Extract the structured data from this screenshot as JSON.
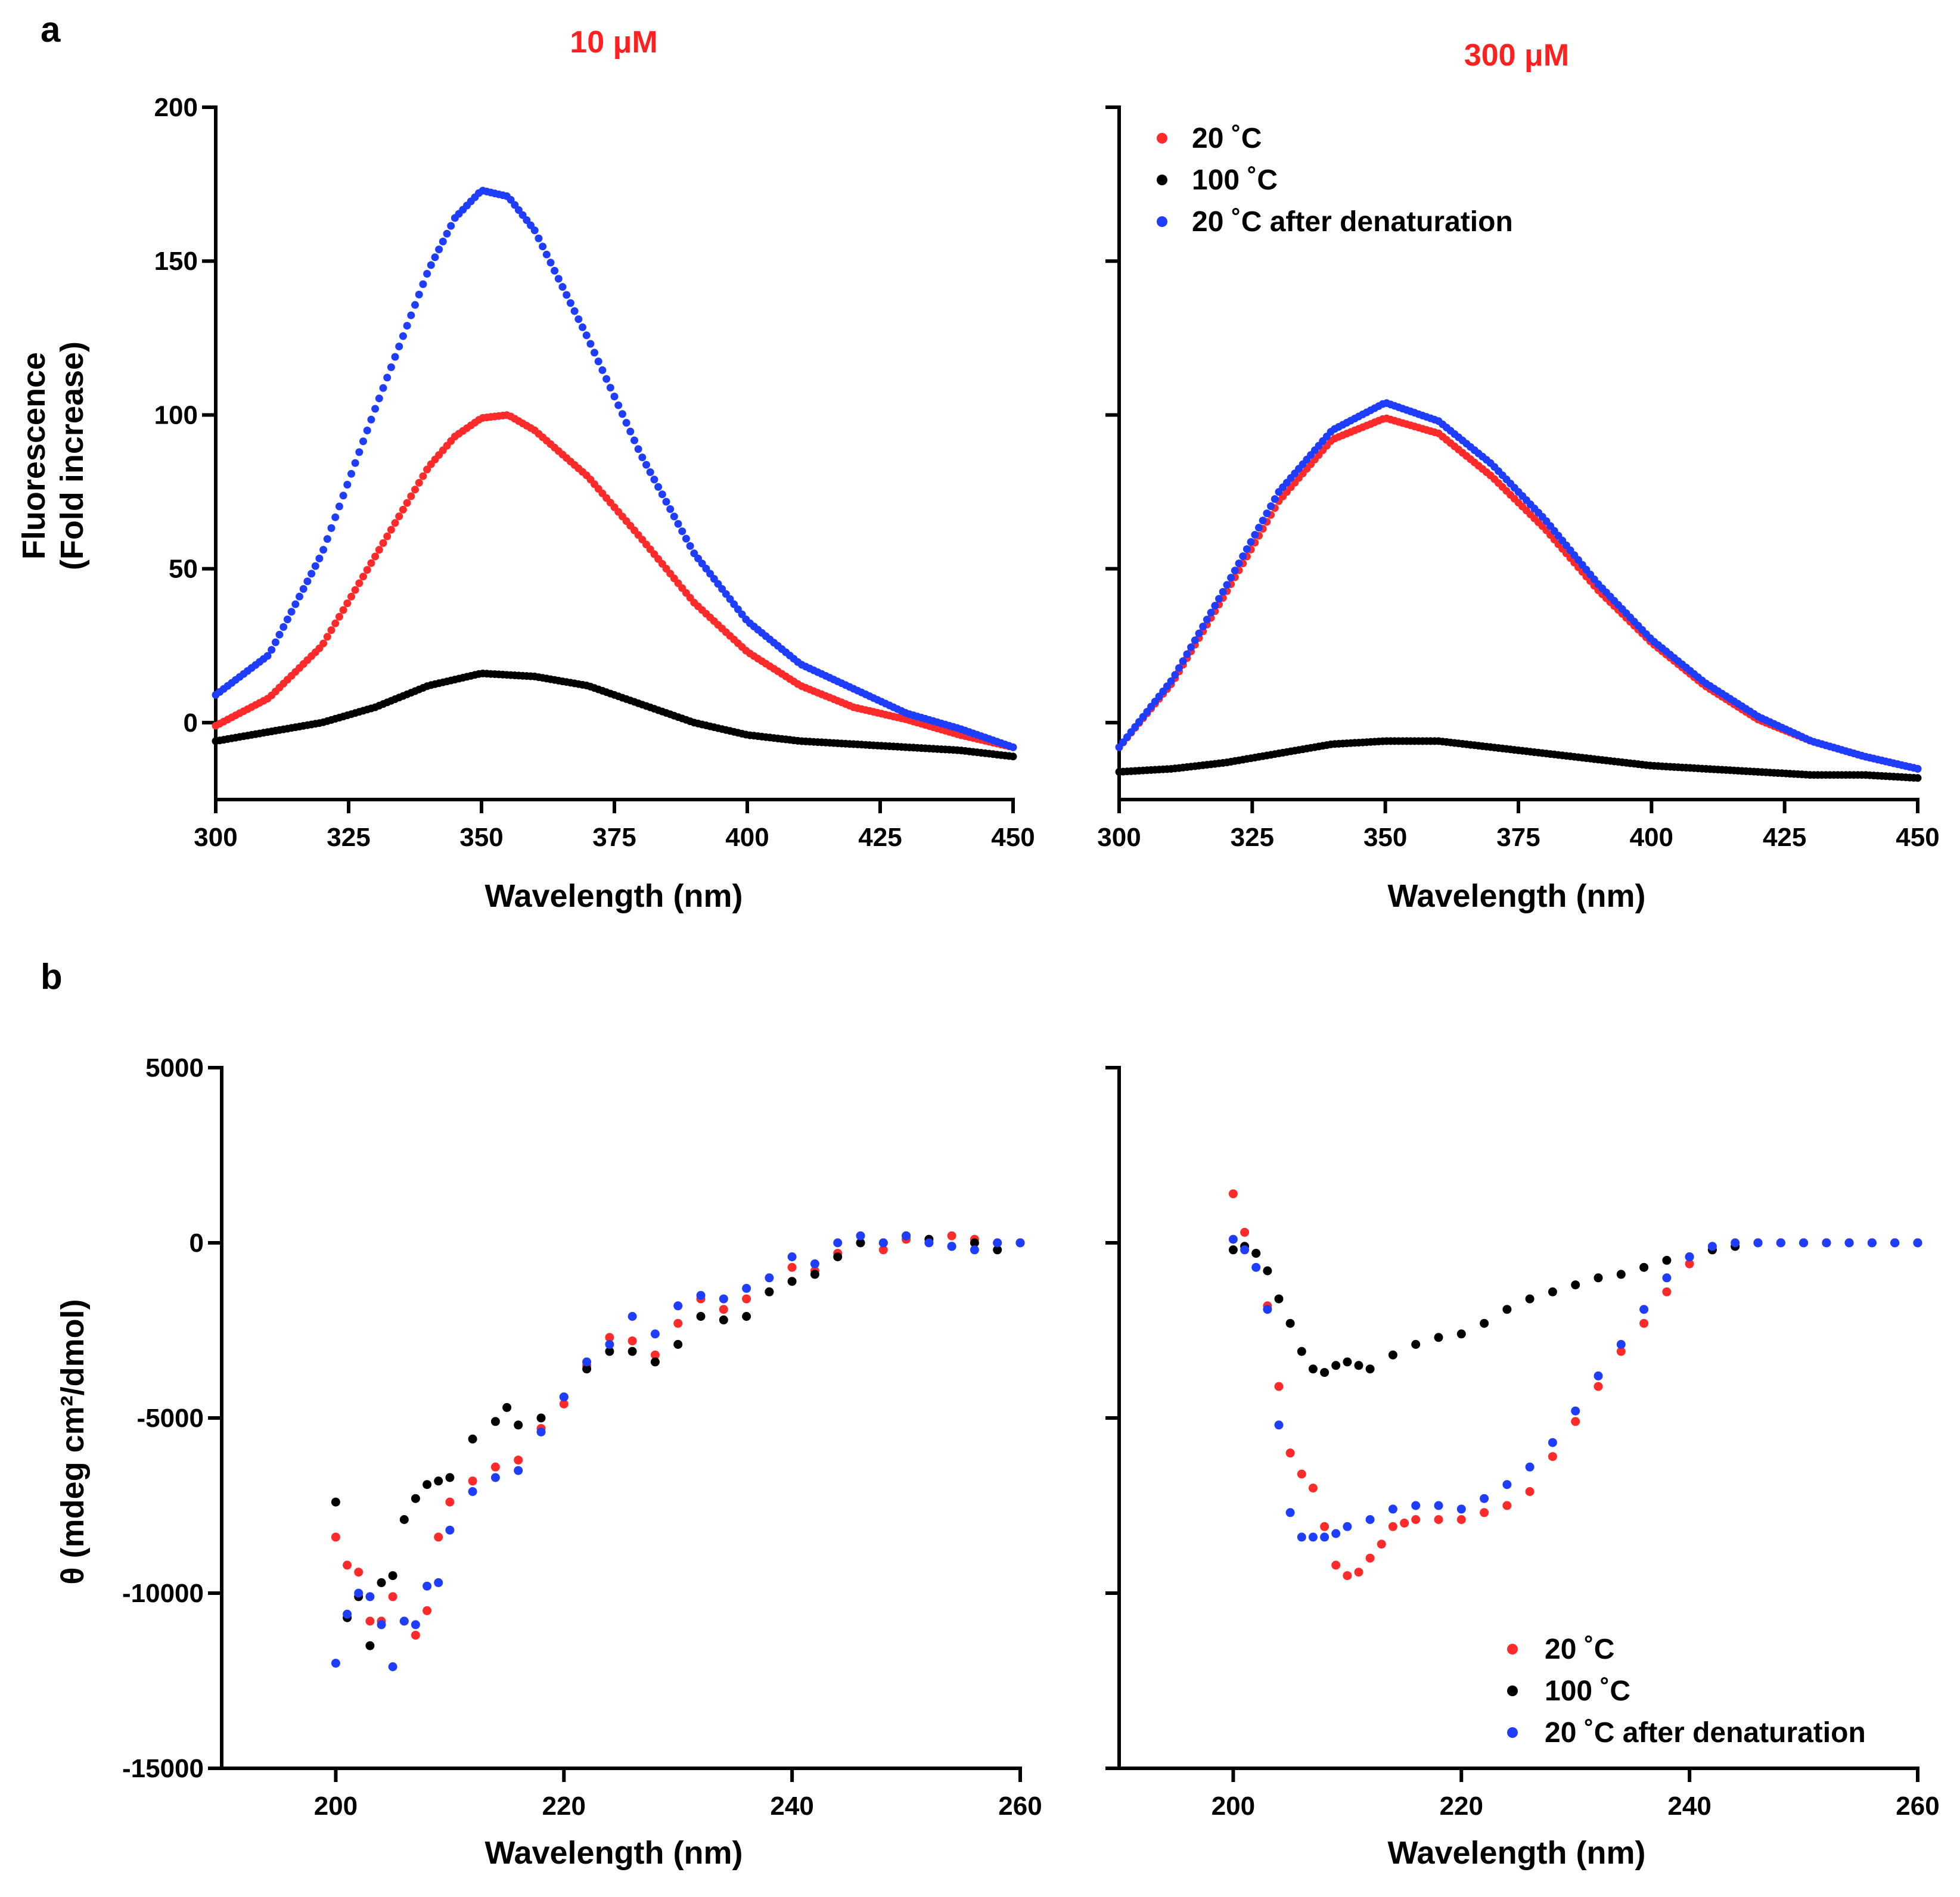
{
  "panel_letters": {
    "a": "a",
    "b": "b"
  },
  "concentrations": {
    "left": "10 μM",
    "right": "300 μM"
  },
  "colors": {
    "series_20C": "#ff2a2a",
    "series_100C": "#000000",
    "series_after": "#1f3dff",
    "title": "#ff2020"
  },
  "legend": {
    "items": [
      {
        "label": "20 ˚C",
        "color": "#ff2a2a"
      },
      {
        "label": "100 ˚C",
        "color": "#000000"
      },
      {
        "label": "20 ˚C after denaturation",
        "color": "#1f3dff"
      }
    ]
  },
  "axes": {
    "fluor_ylabel_line1": "Fluorescence",
    "fluor_ylabel_line2": "(Fold increase)",
    "cd_ylabel": "θ (mdeg cm²/dmol)",
    "xlabel": "Wavelength (nm)"
  },
  "chart_data": [
    {
      "type": "scatter",
      "id": "fluor_10uM",
      "title": "10 μM",
      "xlabel": "Wavelength (nm)",
      "ylabel": "Fluorescence (Fold increase)",
      "xlim": [
        300,
        450
      ],
      "ylim": [
        -25,
        200
      ],
      "xticks": [
        300,
        325,
        350,
        375,
        400,
        425,
        450
      ],
      "yticks": [
        0,
        50,
        100,
        150,
        200
      ],
      "series": [
        {
          "name": "20 ˚C",
          "x": [
            300,
            310,
            320,
            330,
            340,
            345,
            350,
            355,
            360,
            370,
            380,
            390,
            400,
            410,
            420,
            430,
            440,
            450
          ],
          "y": [
            -1,
            8,
            25,
            54,
            83,
            93,
            99,
            100,
            95,
            80,
            60,
            39,
            23,
            12,
            5,
            1,
            -4,
            -8
          ]
        },
        {
          "name": "100 ˚C",
          "x": [
            300,
            310,
            320,
            330,
            340,
            350,
            360,
            370,
            380,
            390,
            400,
            410,
            420,
            430,
            440,
            450
          ],
          "y": [
            -6,
            -3,
            0,
            5,
            12,
            16,
            15,
            12,
            6,
            0,
            -4,
            -6,
            -7,
            -8,
            -9,
            -11
          ]
        },
        {
          "name": "20 ˚C after denaturation",
          "x": [
            300,
            310,
            320,
            330,
            340,
            345,
            350,
            355,
            360,
            370,
            380,
            390,
            400,
            410,
            420,
            430,
            440,
            450
          ],
          "y": [
            9,
            22,
            55,
            102,
            147,
            164,
            173,
            171,
            160,
            125,
            87,
            55,
            33,
            19,
            11,
            3,
            -2,
            -8
          ]
        }
      ]
    },
    {
      "type": "scatter",
      "id": "fluor_300uM",
      "title": "300 μM",
      "xlabel": "Wavelength (nm)",
      "ylabel": "",
      "xlim": [
        300,
        450
      ],
      "ylim": [
        -25,
        200
      ],
      "xticks": [
        300,
        325,
        350,
        375,
        400,
        425,
        450
      ],
      "yticks": [
        0,
        50,
        100,
        150,
        200
      ],
      "legend_position": "top-left",
      "series": [
        {
          "name": "20 ˚C",
          "x": [
            300,
            310,
            320,
            330,
            340,
            350,
            360,
            370,
            380,
            390,
            400,
            410,
            420,
            430,
            440,
            450
          ],
          "y": [
            -8,
            13,
            42,
            72,
            92,
            99,
            94,
            80,
            63,
            43,
            26,
            12,
            1,
            -6,
            -11,
            -15
          ]
        },
        {
          "name": "100 ˚C",
          "x": [
            300,
            310,
            320,
            330,
            340,
            350,
            360,
            370,
            380,
            390,
            400,
            410,
            420,
            430,
            440,
            450
          ],
          "y": [
            -16,
            -15,
            -13,
            -10,
            -7,
            -6,
            -6,
            -8,
            -10,
            -12,
            -14,
            -15,
            -16,
            -17,
            -17,
            -18
          ]
        },
        {
          "name": "20 ˚C after denaturation",
          "x": [
            300,
            310,
            320,
            330,
            340,
            350,
            360,
            370,
            380,
            390,
            400,
            410,
            420,
            430,
            440,
            450
          ],
          "y": [
            -8,
            14,
            44,
            75,
            95,
            104,
            98,
            84,
            66,
            45,
            27,
            13,
            2,
            -6,
            -11,
            -15
          ]
        }
      ]
    },
    {
      "type": "scatter",
      "id": "cd_10uM",
      "xlabel": "Wavelength (nm)",
      "ylabel": "θ (mdeg cm²/dmol)",
      "xlim": [
        190,
        260
      ],
      "ylim": [
        -15000,
        5000
      ],
      "xticks": [
        200,
        220,
        240,
        260
      ],
      "yticks": [
        -15000,
        -10000,
        -5000,
        0,
        5000
      ],
      "series": [
        {
          "name": "20 ˚C",
          "x": [
            200,
            201,
            202,
            203,
            204,
            205,
            206,
            207,
            208,
            209,
            210,
            212,
            214,
            216,
            218,
            220,
            222,
            224,
            226,
            228,
            230,
            232,
            234,
            236,
            238,
            240,
            242,
            244,
            246,
            248,
            250,
            252,
            254,
            256,
            258,
            260
          ],
          "y": [
            -8400,
            -9200,
            -9400,
            -10800,
            -10800,
            -10100,
            -10800,
            -11200,
            -10500,
            -8400,
            -7400,
            -6800,
            -6400,
            -6200,
            -5300,
            -4600,
            -3500,
            -2700,
            -2800,
            -3200,
            -2300,
            -1600,
            -1900,
            -1600,
            -1400,
            -700,
            -800,
            -300,
            0,
            -200,
            100,
            0,
            200,
            100,
            0,
            0
          ]
        },
        {
          "name": "100 ˚C",
          "x": [
            200,
            201,
            202,
            203,
            204,
            205,
            206,
            207,
            208,
            209,
            210,
            212,
            214,
            215,
            216,
            218,
            220,
            222,
            224,
            226,
            228,
            230,
            232,
            234,
            236,
            238,
            240,
            242,
            244,
            246,
            248,
            250,
            252,
            254,
            256,
            258,
            260
          ],
          "y": [
            -7400,
            -10700,
            -10100,
            -11500,
            -9700,
            -9500,
            -7900,
            -7300,
            -6900,
            -6800,
            -6700,
            -5600,
            -5100,
            -4700,
            -5200,
            -5000,
            -4400,
            -3600,
            -3100,
            -3100,
            -3400,
            -2900,
            -2100,
            -2200,
            -2100,
            -1400,
            -1100,
            -900,
            -400,
            0,
            0,
            200,
            100,
            -100,
            0,
            -200,
            0
          ]
        },
        {
          "name": "20 ˚C after denaturation",
          "x": [
            200,
            201,
            202,
            203,
            204,
            205,
            206,
            207,
            208,
            209,
            210,
            212,
            214,
            216,
            218,
            220,
            222,
            224,
            226,
            228,
            230,
            232,
            234,
            236,
            238,
            240,
            242,
            244,
            246,
            248,
            250,
            252,
            254,
            256,
            258,
            260
          ],
          "y": [
            -12000,
            -10600,
            -10000,
            -10100,
            -10900,
            -12100,
            -10800,
            -10900,
            -9800,
            -9700,
            -8200,
            -7100,
            -6700,
            -6500,
            -5400,
            -4400,
            -3400,
            -2900,
            -2100,
            -2600,
            -1800,
            -1500,
            -1600,
            -1300,
            -1000,
            -400,
            -600,
            0,
            200,
            0,
            200,
            0,
            -100,
            -200,
            0,
            0
          ]
        }
      ]
    },
    {
      "type": "scatter",
      "id": "cd_300uM",
      "xlabel": "Wavelength (nm)",
      "ylabel": "",
      "xlim": [
        190,
        260
      ],
      "ylim": [
        -15000,
        5000
      ],
      "xticks": [
        200,
        220,
        240,
        260
      ],
      "yticks": [
        -15000,
        -10000,
        -5000,
        0,
        5000
      ],
      "legend_position": "bottom-right",
      "series": [
        {
          "name": "20 ˚C",
          "x": [
            200,
            201,
            202,
            203,
            204,
            205,
            206,
            207,
            208,
            209,
            210,
            211,
            212,
            213,
            214,
            215,
            216,
            218,
            220,
            222,
            224,
            226,
            228,
            230,
            232,
            234,
            236,
            238,
            240,
            242,
            244,
            246,
            248,
            250,
            252,
            254,
            256,
            258,
            260
          ],
          "y": [
            1400,
            300,
            -300,
            -1800,
            -4100,
            -6000,
            -6600,
            -7000,
            -8100,
            -9200,
            -9500,
            -9400,
            -9000,
            -8600,
            -8100,
            -8000,
            -7900,
            -7900,
            -7900,
            -7700,
            -7500,
            -7100,
            -6100,
            -5100,
            -4100,
            -3100,
            -2300,
            -1400,
            -600,
            -200,
            -100,
            0,
            0,
            0,
            0,
            0,
            0,
            0,
            0
          ]
        },
        {
          "name": "100 ˚C",
          "x": [
            200,
            201,
            202,
            203,
            204,
            205,
            206,
            207,
            208,
            209,
            210,
            211,
            212,
            214,
            216,
            218,
            220,
            222,
            224,
            226,
            228,
            230,
            232,
            234,
            236,
            238,
            240,
            242,
            244,
            246,
            248,
            250,
            252,
            254,
            256,
            258,
            260
          ],
          "y": [
            -200,
            -100,
            -300,
            -800,
            -1600,
            -2300,
            -3100,
            -3600,
            -3700,
            -3500,
            -3400,
            -3500,
            -3600,
            -3200,
            -2900,
            -2700,
            -2600,
            -2300,
            -1900,
            -1600,
            -1400,
            -1200,
            -1000,
            -900,
            -700,
            -500,
            -400,
            -200,
            -100,
            0,
            0,
            0,
            0,
            0,
            0,
            0,
            0
          ]
        },
        {
          "name": "20 ˚C after denaturation",
          "x": [
            200,
            201,
            202,
            203,
            204,
            205,
            206,
            207,
            208,
            209,
            210,
            212,
            214,
            216,
            218,
            220,
            222,
            224,
            226,
            228,
            230,
            232,
            234,
            236,
            238,
            240,
            242,
            244,
            246,
            248,
            250,
            252,
            254,
            256,
            258,
            260
          ],
          "y": [
            100,
            -200,
            -700,
            -1900,
            -5200,
            -7700,
            -8400,
            -8400,
            -8400,
            -8300,
            -8100,
            -7900,
            -7600,
            -7500,
            -7500,
            -7600,
            -7300,
            -6900,
            -6400,
            -5700,
            -4800,
            -3800,
            -2900,
            -1900,
            -1000,
            -400,
            -100,
            0,
            0,
            0,
            0,
            0,
            0,
            0,
            0,
            0
          ]
        }
      ]
    }
  ]
}
